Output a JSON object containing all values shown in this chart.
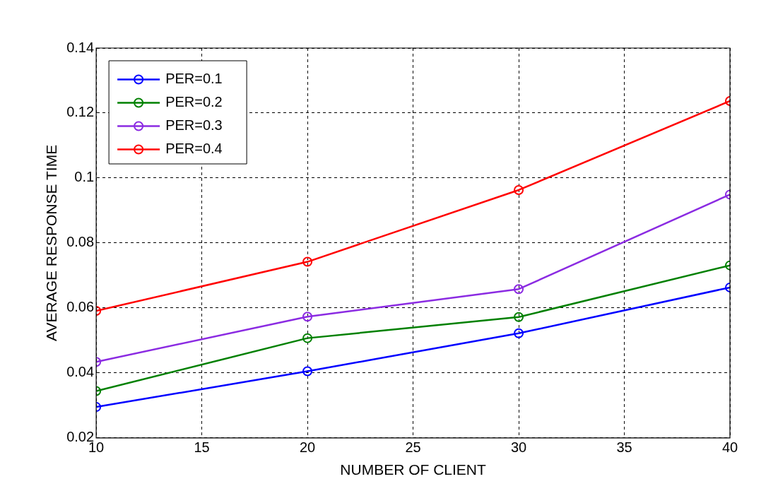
{
  "chart_data": {
    "type": "line",
    "xlabel": "NUMBER OF CLIENT",
    "ylabel": "AVERAGE RESPONSE TIME",
    "x": [
      10,
      20,
      30,
      40
    ],
    "series": [
      {
        "name": "PER=0.1",
        "color": "#0000ff",
        "values": [
          0.0295,
          0.0405,
          0.0522,
          0.0663
        ]
      },
      {
        "name": "PER=0.2",
        "color": "#008000",
        "values": [
          0.0344,
          0.0507,
          0.0572,
          0.0731
        ]
      },
      {
        "name": "PER=0.3",
        "color": "#8b2be2",
        "values": [
          0.0434,
          0.0573,
          0.0658,
          0.0949
        ]
      },
      {
        "name": "PER=0.4",
        "color": "#ff0000",
        "values": [
          0.0591,
          0.0742,
          0.0963,
          0.1237
        ]
      }
    ],
    "xlim": [
      10,
      40
    ],
    "xticks": [
      10,
      15,
      20,
      25,
      30,
      35,
      40
    ],
    "ylim": [
      0.02,
      0.14
    ],
    "yticks": [
      0.02,
      0.04,
      0.06,
      0.08,
      0.1,
      0.12,
      0.14
    ],
    "grid": true,
    "legend": "top left",
    "marker": "circle",
    "line_style": "solid"
  }
}
